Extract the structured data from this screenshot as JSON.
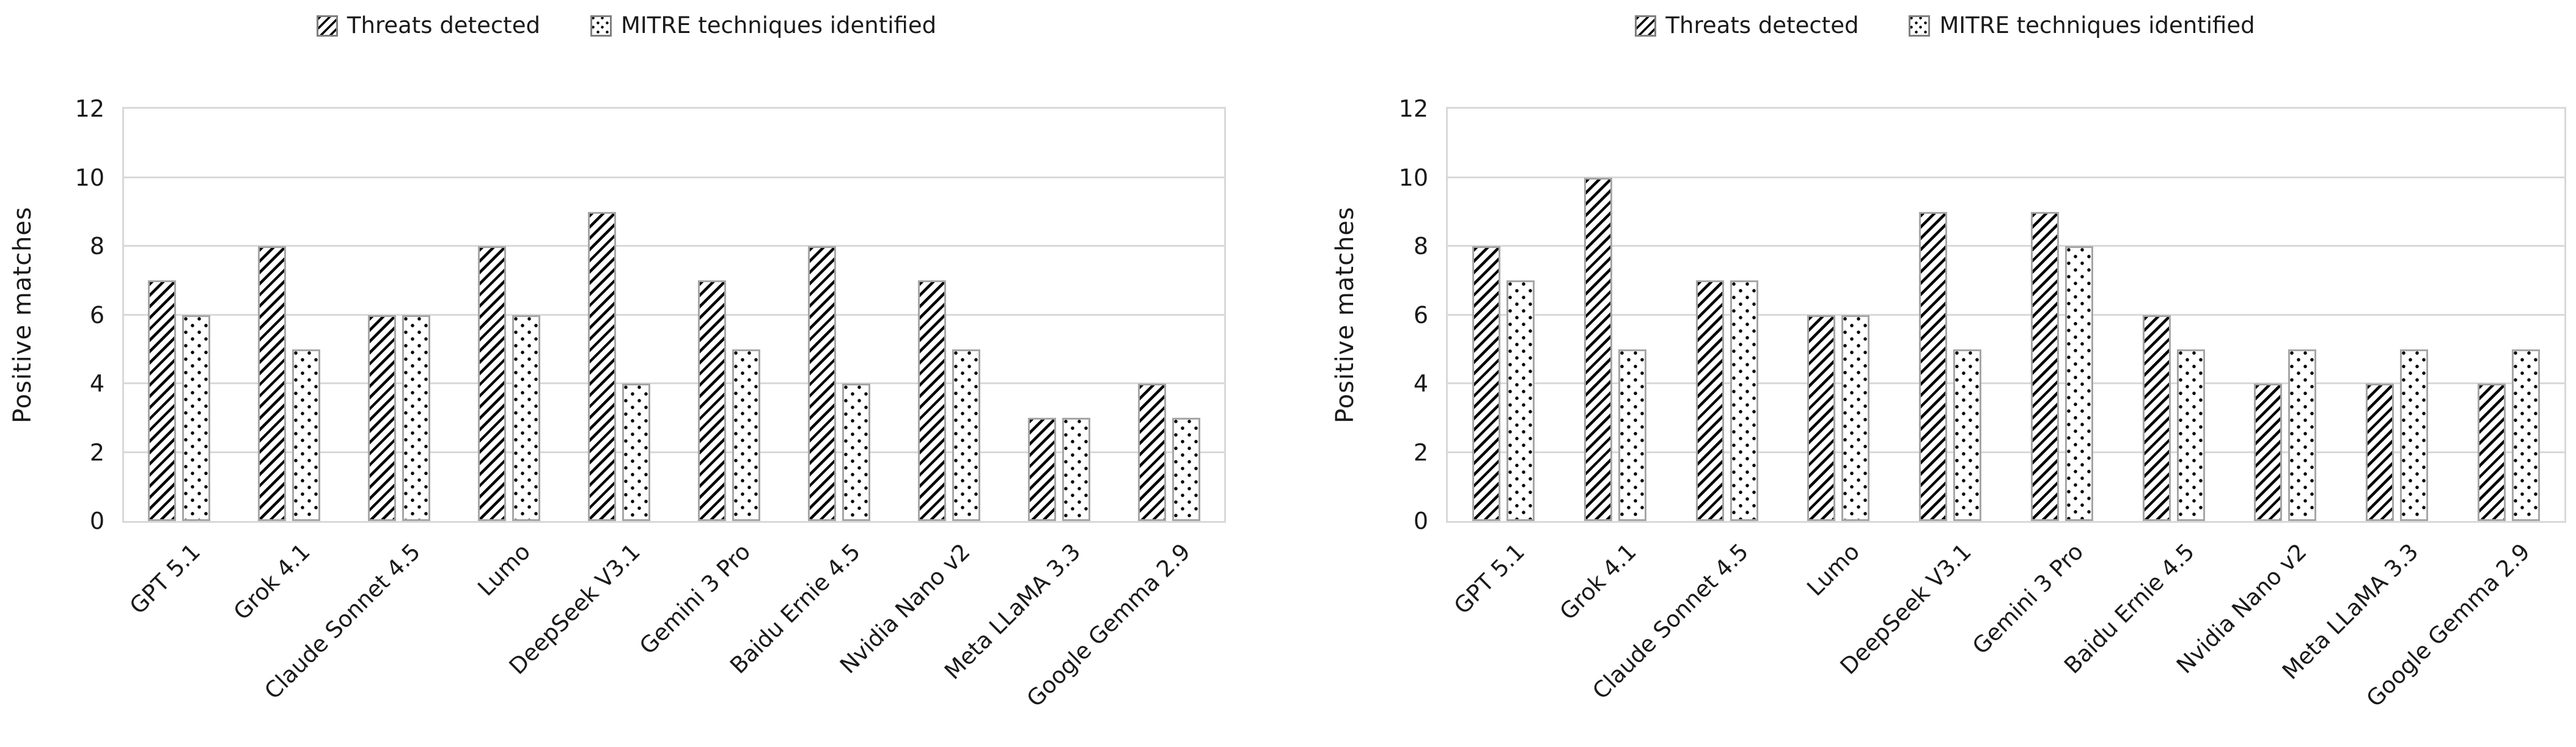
{
  "legend": {
    "items": [
      {
        "label": "Threats detected",
        "pattern": "diagonal-hatch"
      },
      {
        "label": "MITRE techniques identified",
        "pattern": "dots"
      }
    ]
  },
  "axes": {
    "y_label": "Positive matches",
    "y_ticks": [
      0,
      2,
      4,
      6,
      8,
      10,
      12
    ],
    "ylim": [
      0,
      12
    ]
  },
  "colors": {
    "text": "#1a1a1a",
    "gridline": "#d9d9d9",
    "bar_border": "#a6a6a6",
    "pattern_fill": "#000000",
    "background": "#ffffff"
  },
  "chart_data": [
    {
      "type": "bar",
      "position": "left",
      "title": "",
      "xlabel": "",
      "ylabel": "Positive matches",
      "ylim": [
        0,
        12
      ],
      "grid": true,
      "legend_position": "top-center",
      "categories": [
        "GPT 5.1",
        "Grok 4.1",
        "Claude Sonnet 4.5",
        "Lumo",
        "DeepSeek V3.1",
        "Gemini 3 Pro",
        "Baidu Ernie 4.5",
        "Nvidia Nano v2",
        "Meta LLaMA 3.3",
        "Google Gemma 2.9"
      ],
      "series": [
        {
          "name": "Threats detected",
          "pattern": "diagonal-hatch",
          "values": [
            7,
            8,
            6,
            8,
            9,
            7,
            8,
            7,
            3,
            4
          ]
        },
        {
          "name": "MITRE techniques identified",
          "pattern": "dots",
          "values": [
            6,
            5,
            6,
            6,
            4,
            5,
            4,
            5,
            3,
            3
          ]
        }
      ]
    },
    {
      "type": "bar",
      "position": "right",
      "title": "",
      "xlabel": "",
      "ylabel": "Positive matches",
      "ylim": [
        0,
        12
      ],
      "grid": true,
      "legend_position": "top-center",
      "categories": [
        "GPT 5.1",
        "Grok 4.1",
        "Claude Sonnet 4.5",
        "Lumo",
        "DeepSeek V3.1",
        "Gemini 3 Pro",
        "Baidu Ernie 4.5",
        "Nvidia Nano v2",
        "Meta LLaMA 3.3",
        "Google Gemma 2.9"
      ],
      "series": [
        {
          "name": "Threats detected",
          "pattern": "diagonal-hatch",
          "values": [
            8,
            10,
            7,
            6,
            9,
            9,
            6,
            4,
            4,
            4
          ]
        },
        {
          "name": "MITRE techniques identified",
          "pattern": "dots",
          "values": [
            7,
            5,
            7,
            6,
            5,
            8,
            5,
            5,
            5,
            5
          ]
        }
      ]
    }
  ]
}
